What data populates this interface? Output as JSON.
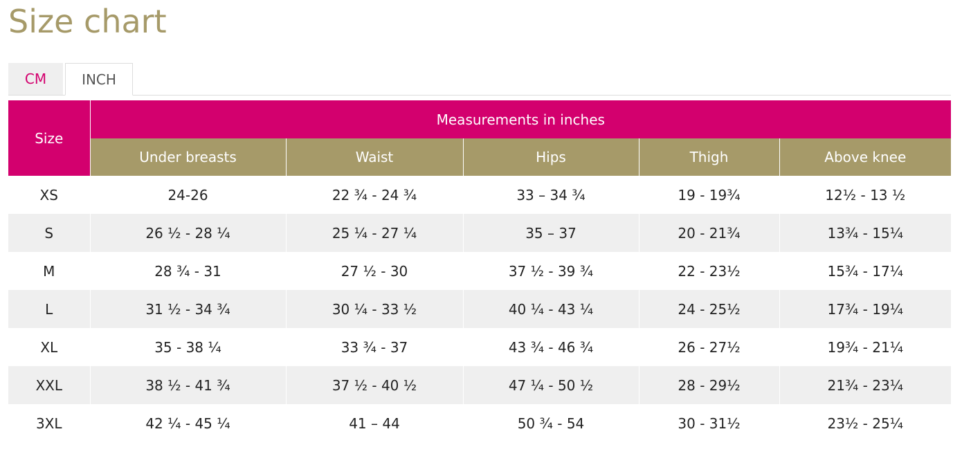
{
  "page": {
    "title": "Size chart"
  },
  "colors": {
    "title": "#a69a69",
    "accent": "#d3006e",
    "subheader": "#a69a69",
    "stripe": "#efefef"
  },
  "tabs": [
    {
      "label": "CM",
      "active": false
    },
    {
      "label": "INCH",
      "active": true
    }
  ],
  "table": {
    "size_header": "Size",
    "group_header": "Measurements in inches",
    "columns": [
      "Under breasts",
      "Waist",
      "Hips",
      "Thigh",
      "Above knee"
    ],
    "rows": [
      {
        "size": "XS",
        "values": [
          "24-26",
          "22 ¾ - 24 ¾",
          "33 – 34 ¾",
          "19 - 19¾",
          "12½ - 13 ½"
        ]
      },
      {
        "size": "S",
        "values": [
          "26 ½ - 28 ¼",
          "25 ¼ - 27 ¼",
          "35 – 37",
          "20 - 21¾",
          "13¾ - 15¼"
        ]
      },
      {
        "size": "M",
        "values": [
          "28 ¾ - 31",
          "27 ½ - 30",
          "37 ½ - 39 ¾",
          "22 - 23½",
          "15¾ - 17¼"
        ]
      },
      {
        "size": "L",
        "values": [
          "31 ½ - 34 ¾",
          "30 ¼ - 33 ½",
          "40 ¼ - 43 ¼",
          "24 - 25½",
          "17¾ - 19¼"
        ]
      },
      {
        "size": "XL",
        "values": [
          "35 - 38 ¼",
          "33 ¾ - 37",
          "43 ¾ - 46 ¾",
          "26 - 27½",
          "19¾ - 21¼"
        ]
      },
      {
        "size": "XXL",
        "values": [
          "38 ½ - 41 ¾",
          "37 ½ - 40 ½",
          "47 ¼ - 50 ½",
          "28 - 29½",
          "21¾ - 23¼"
        ]
      },
      {
        "size": "3XL",
        "values": [
          "42 ¼ - 45 ¼",
          "41 – 44",
          "50 ¾ - 54",
          "30 - 31½",
          "23½ - 25¼"
        ]
      }
    ]
  }
}
